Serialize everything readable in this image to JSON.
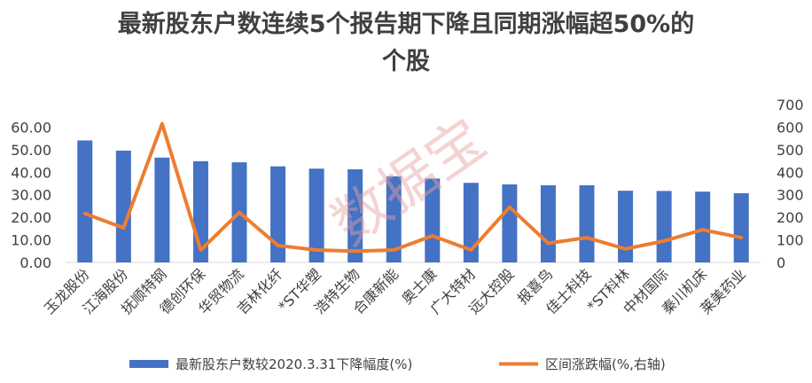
{
  "chart_data": {
    "type": "bar+line",
    "title": "最新股东户数连续5个报告期下降且同期涨幅超50%的个股",
    "watermark": "数据宝",
    "categories": [
      "玉龙股份",
      "江海股份",
      "抚顺特钢",
      "德创环保",
      "华贸物流",
      "吉林化纤",
      "*ST华塑",
      "浩特生物",
      "合康新能",
      "奥士康",
      "广大特材",
      "远大控股",
      "报喜鸟",
      "佳士科技",
      "*ST科林",
      "中材国际",
      "秦川机床",
      "莱美药业"
    ],
    "series": [
      {
        "name": "最新股东户数较2020.3.31下降幅度(%)",
        "type": "bar",
        "axis": "left",
        "color": "#4472C4",
        "values": [
          54.1,
          49.6,
          46.5,
          44.9,
          44.4,
          42.6,
          41.6,
          41.3,
          38.2,
          37.2,
          35.3,
          34.6,
          34.2,
          34.2,
          31.8,
          31.7,
          31.4,
          30.7
        ]
      },
      {
        "name": "区间涨跌幅(%,右轴)",
        "type": "line",
        "axis": "right",
        "color": "#ED7D31",
        "values": [
          217,
          153,
          615,
          55,
          222,
          75,
          55,
          50,
          55,
          118,
          55,
          245,
          85,
          110,
          60,
          95,
          145,
          110
        ]
      }
    ],
    "y_left": {
      "min": 0,
      "max": 70,
      "ticks": [
        "0.00",
        "10.00",
        "20.00",
        "30.00",
        "40.00",
        "50.00",
        "60.00"
      ]
    },
    "y_right": {
      "min": 0,
      "max": 700,
      "ticks": [
        "0",
        "100",
        "200",
        "300",
        "400",
        "500",
        "600",
        "700"
      ]
    },
    "grid": false,
    "legend": "bottom"
  }
}
